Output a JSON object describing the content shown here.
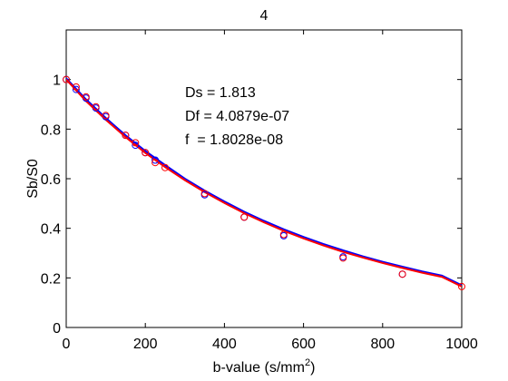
{
  "chart_data": {
    "type": "scatter",
    "title": "4",
    "xlabel_main": "b-value (s/mm",
    "xlabel_sup": "2",
    "xlabel_close": ")",
    "ylabel": "Sb/S0",
    "xlim": [
      0,
      1000
    ],
    "ylim": [
      0,
      1.2
    ],
    "x_ticks": [
      0,
      200,
      400,
      600,
      800,
      1000
    ],
    "y_ticks": [
      0,
      0.2,
      0.4,
      0.6,
      0.8,
      1
    ],
    "grid": false,
    "annotations": [
      "Ds = 1.813",
      "Df = 4.0879e-07",
      "f  = 1.8028e-08"
    ],
    "colors": {
      "red": "#ff0000",
      "blue": "#0000ff"
    },
    "series": [
      {
        "marker": "circle",
        "color": "#0000ff",
        "x": [
          0,
          25,
          50,
          75,
          100,
          150,
          175,
          200,
          225,
          350,
          450,
          550,
          700,
          850
        ],
        "y": [
          1.0,
          0.96,
          0.925,
          0.885,
          0.85,
          0.775,
          0.735,
          0.705,
          0.675,
          0.535,
          0.445,
          0.37,
          0.285,
          0.215
        ]
      },
      {
        "marker": "circle",
        "color": "#ff0000",
        "x": [
          0,
          25,
          50,
          75,
          100,
          150,
          175,
          200,
          225,
          250,
          350,
          450,
          550,
          700,
          850,
          1000
        ],
        "y": [
          1.0,
          0.97,
          0.93,
          0.89,
          0.855,
          0.775,
          0.745,
          0.705,
          0.665,
          0.645,
          0.54,
          0.445,
          0.375,
          0.28,
          0.215,
          0.165
        ]
      },
      {
        "line": true,
        "color": "#0000ff",
        "x": [
          0,
          50,
          100,
          150,
          200,
          250,
          300,
          350,
          400,
          450,
          500,
          550,
          600,
          650,
          700,
          750,
          800,
          850,
          900,
          950,
          1000
        ],
        "y": [
          1.005,
          0.92,
          0.845,
          0.775,
          0.712,
          0.655,
          0.6,
          0.552,
          0.508,
          0.467,
          0.43,
          0.396,
          0.365,
          0.337,
          0.311,
          0.287,
          0.265,
          0.245,
          0.226,
          0.209,
          0.17
        ]
      },
      {
        "line": true,
        "color": "#ff0000",
        "x": [
          0,
          50,
          100,
          150,
          200,
          250,
          300,
          350,
          400,
          450,
          500,
          550,
          600,
          650,
          700,
          750,
          800,
          850,
          900,
          950,
          1000
        ],
        "y": [
          1.0,
          0.913,
          0.838,
          0.768,
          0.704,
          0.647,
          0.594,
          0.546,
          0.502,
          0.461,
          0.424,
          0.39,
          0.359,
          0.331,
          0.305,
          0.282,
          0.26,
          0.24,
          0.221,
          0.204,
          0.165
        ]
      }
    ]
  }
}
